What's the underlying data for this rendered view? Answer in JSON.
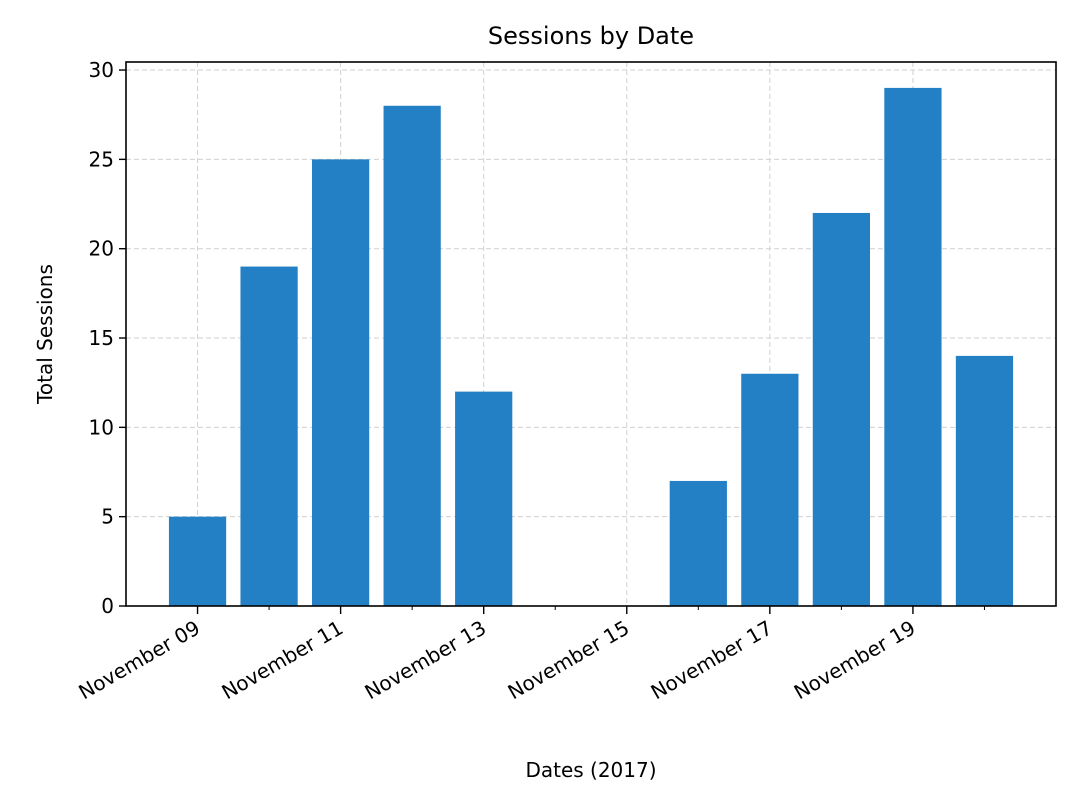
{
  "chart_data": {
    "type": "bar",
    "title": "Sessions by Date",
    "xlabel": "Dates (2017)",
    "ylabel": "Total Sessions",
    "categories": [
      "2017-11-09",
      "2017-11-10",
      "2017-11-11",
      "2017-11-12",
      "2017-11-13",
      "2017-11-14",
      "2017-11-15",
      "2017-11-16",
      "2017-11-17",
      "2017-11-18",
      "2017-11-19",
      "2017-11-20"
    ],
    "values": [
      5,
      19,
      25,
      28,
      12,
      0,
      0,
      7,
      13,
      22,
      29,
      14
    ],
    "xtick_labels": [
      "November 09",
      "November 11",
      "November 13",
      "November 15",
      "November 17",
      "November 19"
    ],
    "yticks": [
      0,
      5,
      10,
      15,
      20,
      25,
      30
    ],
    "ylim": [
      0,
      30.45
    ],
    "xlim": [
      "2017-11-08",
      "2017-11-21"
    ],
    "grid": true,
    "bar_color": "#2380c4"
  }
}
